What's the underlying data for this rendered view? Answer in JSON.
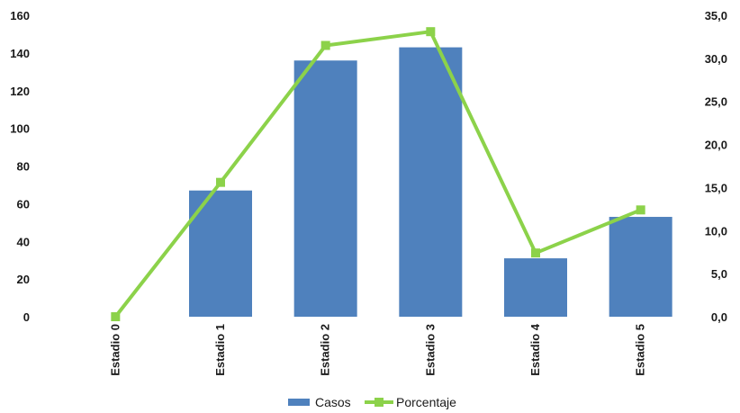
{
  "chart_data": {
    "type": "bar",
    "categories": [
      "Estadio 0",
      "Estadio 1",
      "Estadio 2",
      "Estadio 3",
      "Estadio 4",
      "Estadio 5"
    ],
    "series": [
      {
        "name": "Casos",
        "type": "bar",
        "axis": "left",
        "color": "#4f81bd",
        "values": [
          0,
          67,
          136,
          143,
          31,
          53
        ]
      },
      {
        "name": "Porcentaje",
        "type": "line",
        "axis": "right",
        "color": "#8cd24a",
        "values": [
          0.0,
          15.6,
          31.5,
          33.1,
          7.4,
          12.4
        ]
      }
    ],
    "y_left": {
      "lim": [
        0,
        160
      ],
      "ticks": [
        "0",
        "20",
        "40",
        "60",
        "80",
        "100",
        "120",
        "140",
        "160"
      ]
    },
    "y_right": {
      "lim": [
        0,
        35
      ],
      "ticks": [
        "0,0",
        "5,0",
        "10,0",
        "15,0",
        "20,0",
        "25,0",
        "30,0",
        "35,0"
      ]
    },
    "grid": false,
    "legend": {
      "position": "bottom",
      "entries": [
        "Casos",
        "Porcentaje"
      ]
    }
  }
}
